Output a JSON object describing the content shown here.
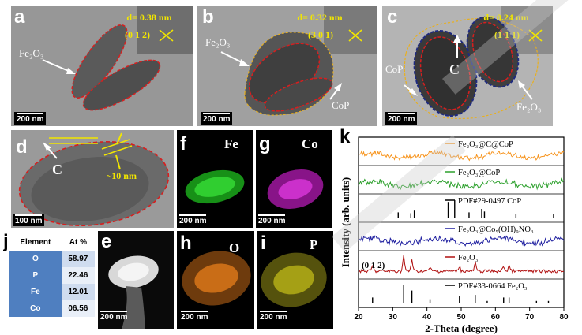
{
  "panels": {
    "a": {
      "letter": "a",
      "d_value": "d= 0.38 nm",
      "hkl": "(0 1 2)",
      "phase_label": "Fe₂O₃",
      "scale": "200 nm"
    },
    "b": {
      "letter": "b",
      "d_value": "d= 0.32 nm",
      "hkl": "(3 0 1)",
      "phase_label": "Fe₂O₃",
      "cop_label": "CoP",
      "scale": "200 nm"
    },
    "c": {
      "letter": "c",
      "d_value": "d= 0.24 nm",
      "hkl": "(1 1 1)",
      "cop_label": "CoP",
      "carbon_label": "C",
      "phase_label": "Fe₂O₃",
      "scale": "200 nm"
    },
    "d": {
      "letter": "d",
      "carbon_label": "C",
      "thickness": "~10 nm",
      "scale": "100 nm"
    },
    "e": {
      "letter": "e",
      "scale": "200 nm"
    },
    "f": {
      "letter": "f",
      "element": "Fe",
      "scale": "200 nm",
      "color": "#22c81e"
    },
    "g": {
      "letter": "g",
      "element": "Co",
      "scale": "200 nm",
      "color": "#c624c6"
    },
    "h": {
      "letter": "h",
      "element": "O",
      "scale": "200 nm",
      "color": "#e07a1a"
    },
    "i": {
      "letter": "i",
      "element": "P",
      "scale": "200 nm",
      "color": "#c8c21a"
    },
    "j": {
      "letter": "j"
    },
    "k": {
      "letter": "k"
    }
  },
  "composition_table": {
    "headers": [
      "Element",
      "At %"
    ],
    "rows": [
      [
        "O",
        "58.97"
      ],
      [
        "P",
        "22.46"
      ],
      [
        "Fe",
        "12.01"
      ],
      [
        "Co",
        "06.56"
      ]
    ]
  },
  "chart_data": {
    "type": "line",
    "xlabel": "2-Theta (degree)",
    "ylabel": "Intensity (arb. units)",
    "xlim": [
      20,
      80
    ],
    "xticks": [
      20,
      30,
      40,
      50,
      60,
      70,
      80
    ],
    "series": [
      {
        "name": "Fe₂O₃@C@CoP",
        "color": "#f7941d",
        "style": "noisy-line"
      },
      {
        "name": "Fe₂O₃@CoP",
        "color": "#2ca02c",
        "style": "noisy-line"
      },
      {
        "name": "PDF#29-0497 CoP",
        "color": "#000000",
        "style": "sticks",
        "peaks": [
          [
            31.6,
            0.3
          ],
          [
            35.3,
            0.25
          ],
          [
            36.3,
            0.4
          ],
          [
            46.2,
            0.9
          ],
          [
            48.1,
            1.0
          ],
          [
            52.3,
            0.3
          ],
          [
            56.0,
            0.5
          ],
          [
            56.8,
            0.35
          ],
          [
            66.0,
            0.2
          ],
          [
            77.0,
            0.2
          ]
        ]
      },
      {
        "name": "Fe₂O₃@Co₅(OH)₉NO₃",
        "color": "#1f1fa0",
        "style": "noisy-line"
      },
      {
        "name": "Fe₂O₃",
        "color": "#b01010",
        "style": "peaked-line",
        "peaks": [
          [
            24.1,
            0.35
          ],
          [
            33.2,
            1.0
          ],
          [
            35.6,
            0.75
          ],
          [
            40.9,
            0.25
          ],
          [
            49.5,
            0.35
          ],
          [
            54.1,
            0.5
          ],
          [
            62.4,
            0.35
          ],
          [
            64.0,
            0.35
          ]
        ]
      },
      {
        "name": "PDF#33-0664 Fe₂O₃",
        "color": "#000000",
        "style": "sticks",
        "peaks": [
          [
            24.1,
            0.3
          ],
          [
            33.2,
            1.0
          ],
          [
            35.6,
            0.7
          ],
          [
            40.9,
            0.2
          ],
          [
            49.5,
            0.4
          ],
          [
            54.1,
            0.45
          ],
          [
            57.6,
            0.1
          ],
          [
            62.4,
            0.3
          ],
          [
            64.0,
            0.3
          ],
          [
            72.0,
            0.1
          ],
          [
            75.5,
            0.1
          ]
        ]
      }
    ],
    "annotations": [
      {
        "text": "(0 1 2)"
      }
    ]
  }
}
